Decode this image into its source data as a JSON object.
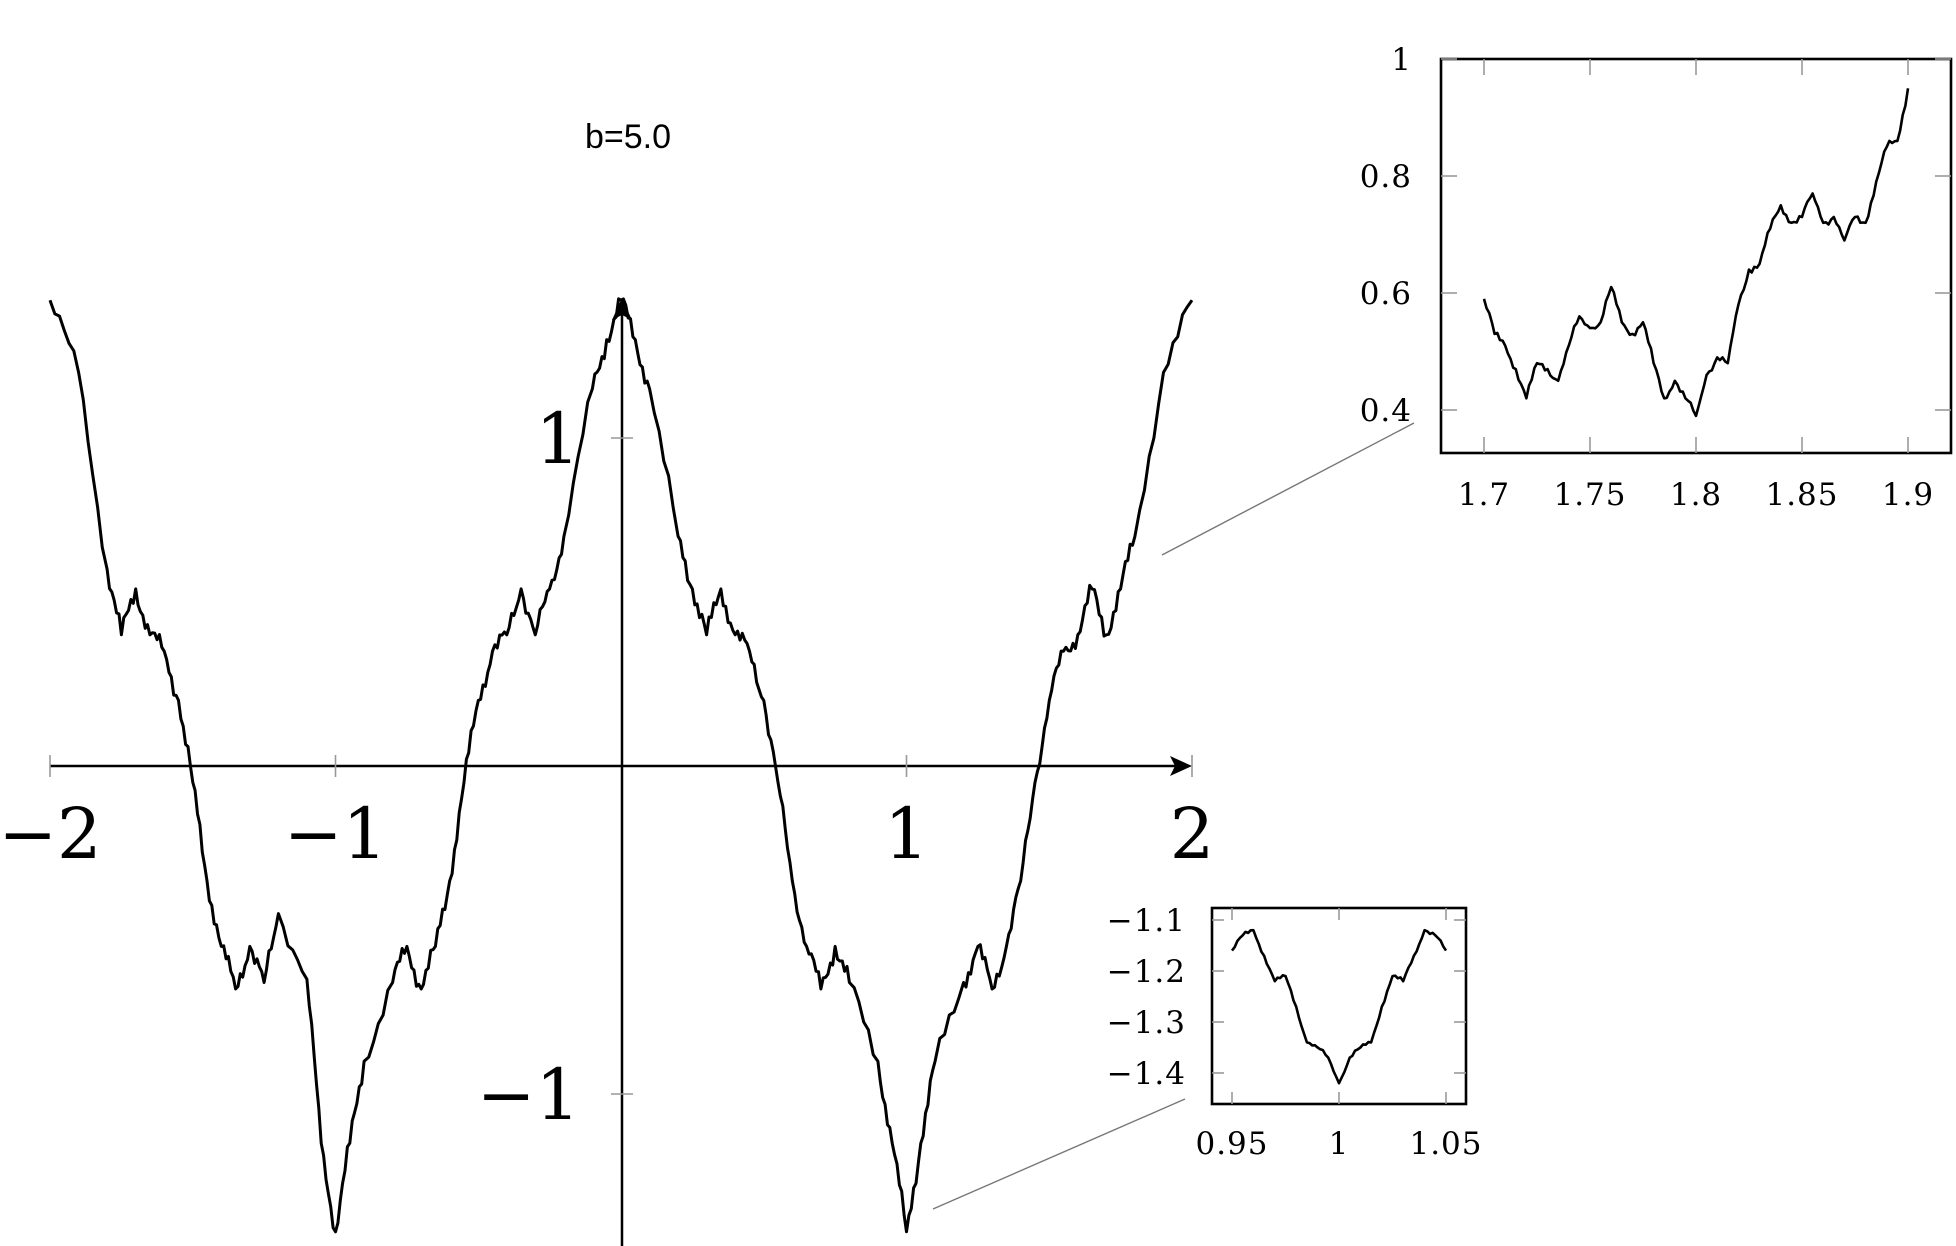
{
  "chart_data": [
    {
      "type": "line",
      "title": "b=5.0",
      "xlabel": "",
      "ylabel": "",
      "xlim": [
        -2,
        2
      ],
      "ylim": [
        -1.42,
        1.42
      ],
      "xticks": [
        -2,
        -1,
        1,
        2
      ],
      "xtick_labels": [
        "−2",
        "−1",
        "1",
        "2"
      ],
      "yticks": [
        1,
        -1
      ],
      "ytick_labels": [
        "1",
        "−1"
      ],
      "grid": false,
      "series": [
        {
          "x": [
            -2.0,
            -1.9,
            -1.8,
            -1.75,
            -1.7,
            -1.65,
            -1.6,
            -1.55,
            -1.5,
            -1.45,
            -1.4,
            -1.35,
            -1.3,
            -1.25,
            -1.2,
            -1.1,
            -1.05,
            -1.0,
            -0.95,
            -0.9,
            -0.8,
            -0.75,
            -0.7,
            -0.65,
            -0.6,
            -0.55,
            -0.5,
            -0.45,
            -0.4,
            -0.35,
            -0.3,
            -0.25,
            -0.2,
            -0.1,
            -0.05,
            0.0,
            0.05,
            0.1,
            0.2,
            0.25,
            0.3,
            0.35,
            0.4,
            0.45,
            0.5,
            0.55,
            0.6,
            0.65,
            0.7,
            0.75,
            0.8,
            0.9,
            0.95,
            1.0,
            1.05,
            1.1,
            1.2,
            1.25,
            1.3,
            1.35,
            1.4,
            1.45,
            1.5,
            1.55,
            1.6,
            1.65,
            1.7,
            1.75,
            1.8,
            1.9,
            2.0
          ],
          "y": [
            1.42,
            1.2,
            0.6,
            0.4,
            0.54,
            0.4,
            0.35,
            0.2,
            -0.05,
            -0.35,
            -0.55,
            -0.68,
            -0.55,
            -0.66,
            -0.45,
            -0.65,
            -1.15,
            -1.42,
            -1.15,
            -0.9,
            -0.66,
            -0.55,
            -0.68,
            -0.55,
            -0.35,
            -0.05,
            0.2,
            0.35,
            0.4,
            0.54,
            0.4,
            0.54,
            0.7,
            1.15,
            1.3,
            1.42,
            1.3,
            1.15,
            0.7,
            0.54,
            0.4,
            0.54,
            0.4,
            0.35,
            0.2,
            -0.05,
            -0.35,
            -0.55,
            -0.68,
            -0.55,
            -0.66,
            -0.9,
            -1.15,
            -1.42,
            -1.15,
            -0.9,
            -0.66,
            -0.55,
            -0.68,
            -0.55,
            -0.35,
            -0.05,
            0.2,
            0.35,
            0.4,
            0.54,
            0.4,
            0.54,
            0.7,
            1.2,
            1.42
          ]
        }
      ]
    },
    {
      "type": "line",
      "title": "",
      "xlim": [
        1.7,
        1.9
      ],
      "ylim": [
        0.37,
        1.0
      ],
      "xticks": [
        1.7,
        1.75,
        1.8,
        1.85,
        1.9
      ],
      "xtick_labels": [
        "1.7",
        "1.75",
        "1.8",
        "1.85",
        "1.9"
      ],
      "yticks": [
        0.4,
        0.6,
        0.8,
        1
      ],
      "ytick_labels": [
        "0.4",
        "0.6",
        "0.8",
        "1"
      ],
      "series": [
        {
          "x": [
            1.7,
            1.705,
            1.71,
            1.715,
            1.72,
            1.725,
            1.73,
            1.735,
            1.74,
            1.745,
            1.75,
            1.755,
            1.76,
            1.765,
            1.77,
            1.775,
            1.78,
            1.785,
            1.79,
            1.795,
            1.8,
            1.805,
            1.81,
            1.815,
            1.82,
            1.825,
            1.83,
            1.835,
            1.84,
            1.845,
            1.85,
            1.855,
            1.86,
            1.865,
            1.87,
            1.875,
            1.88,
            1.885,
            1.89,
            1.895,
            1.9
          ],
          "y": [
            0.59,
            0.53,
            0.51,
            0.47,
            0.42,
            0.48,
            0.47,
            0.45,
            0.51,
            0.56,
            0.54,
            0.55,
            0.61,
            0.55,
            0.53,
            0.55,
            0.48,
            0.42,
            0.45,
            0.42,
            0.39,
            0.46,
            0.49,
            0.48,
            0.58,
            0.64,
            0.65,
            0.71,
            0.75,
            0.72,
            0.73,
            0.77,
            0.72,
            0.73,
            0.69,
            0.73,
            0.72,
            0.79,
            0.85,
            0.86,
            0.95
          ]
        }
      ]
    },
    {
      "type": "line",
      "title": "",
      "xlim": [
        0.945,
        1.055
      ],
      "ylim": [
        -1.43,
        -1.08
      ],
      "xticks": [
        0.95,
        1,
        1.05
      ],
      "xtick_labels": [
        "0.95",
        "1",
        "1.05"
      ],
      "yticks": [
        -1.1,
        -1.2,
        -1.3,
        -1.4
      ],
      "ytick_labels": [
        "−1.1",
        "−1.2",
        "−1.3",
        "−1.4"
      ],
      "series": [
        {
          "x": [
            0.95,
            0.955,
            0.96,
            0.965,
            0.97,
            0.975,
            0.98,
            0.985,
            0.99,
            0.995,
            1.0,
            1.005,
            1.01,
            1.015,
            1.02,
            1.025,
            1.03,
            1.035,
            1.04,
            1.045,
            1.05
          ],
          "y": [
            -1.16,
            -1.13,
            -1.12,
            -1.17,
            -1.22,
            -1.21,
            -1.27,
            -1.34,
            -1.35,
            -1.37,
            -1.42,
            -1.37,
            -1.35,
            -1.34,
            -1.27,
            -1.21,
            -1.22,
            -1.17,
            -1.12,
            -1.13,
            -1.16
          ]
        }
      ]
    }
  ]
}
